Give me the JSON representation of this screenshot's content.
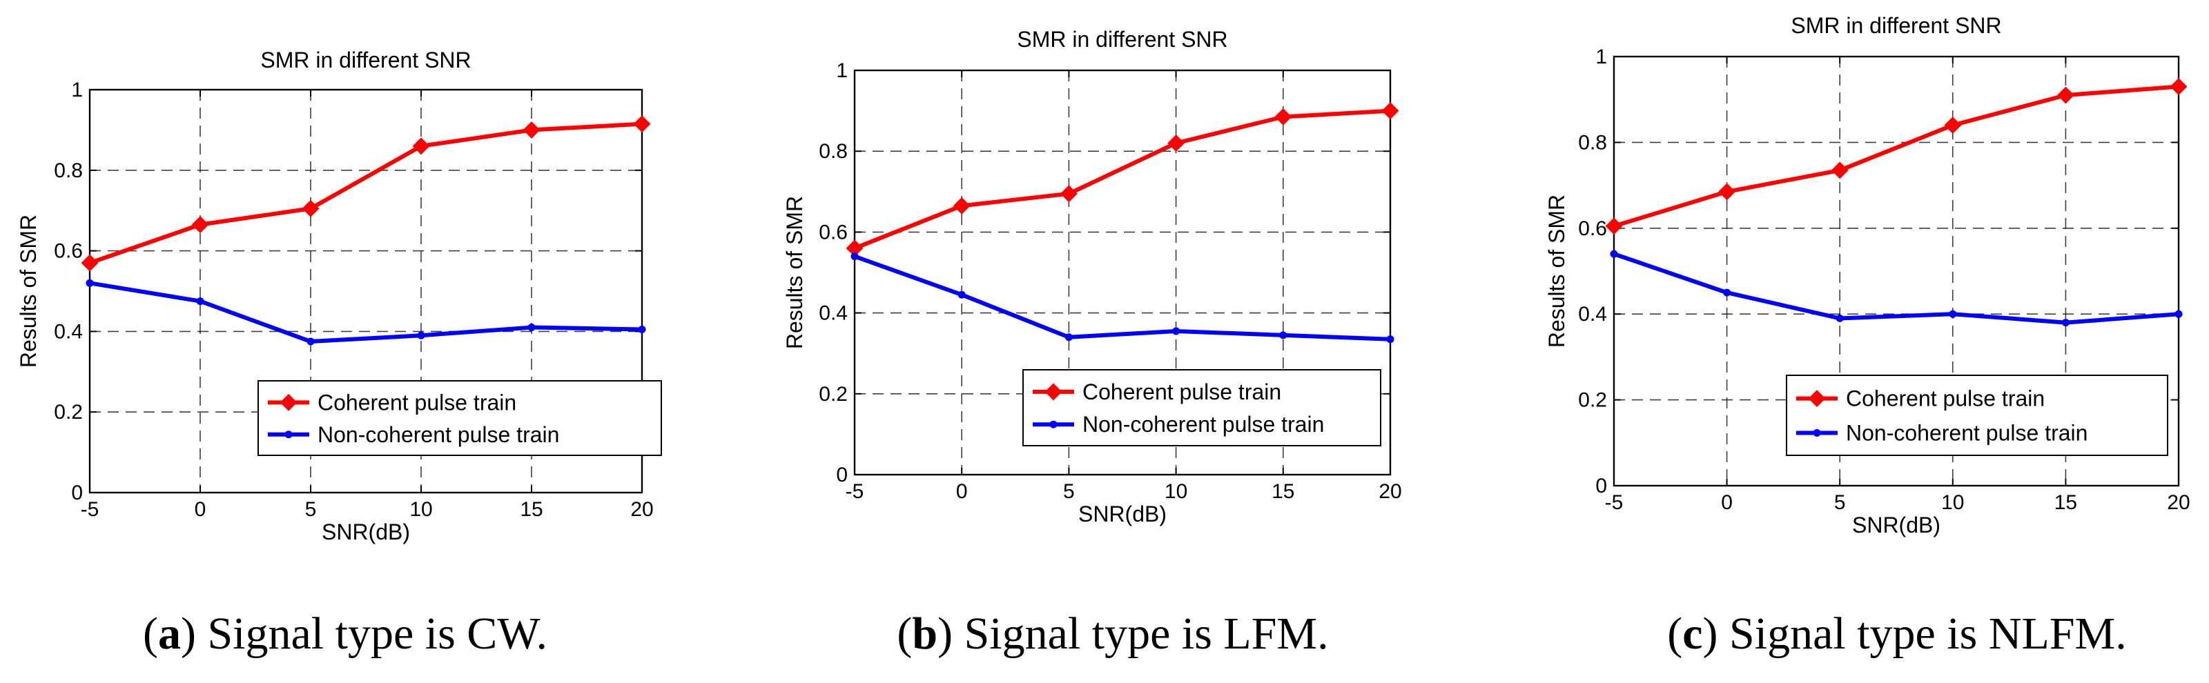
{
  "colors": {
    "coherent": "#ff0000",
    "noncoherent": "#0000ff",
    "grid": "#000000",
    "axis": "#000000"
  },
  "chart_data": [
    {
      "type": "line",
      "title": "SMR in different SNR",
      "xlabel": "SNR(dB)",
      "ylabel": "Results of SMR",
      "x": [
        -5,
        0,
        5,
        10,
        15,
        20
      ],
      "xlim": [
        -5,
        20
      ],
      "ylim": [
        0,
        1
      ],
      "xticks": [
        "-5",
        "0",
        "5",
        "10",
        "15",
        "20"
      ],
      "yticks": [
        "0",
        "0.2",
        "0.4",
        "0.6",
        "0.8",
        "1"
      ],
      "grid": true,
      "legend_position": "lower-right",
      "series": [
        {
          "name": "Coherent pulse train",
          "marker": "diamond",
          "values": [
            0.57,
            0.665,
            0.705,
            0.86,
            0.9,
            0.915
          ]
        },
        {
          "name": "Non-coherent pulse train",
          "marker": "point",
          "values": [
            0.52,
            0.475,
            0.375,
            0.39,
            0.41,
            0.405
          ]
        }
      ],
      "caption": {
        "label": "a",
        "prefix": "(",
        "suffix": ")",
        "text": " Signal type is CW."
      }
    },
    {
      "type": "line",
      "title": "SMR in different SNR",
      "xlabel": "SNR(dB)",
      "ylabel": "Results of SMR",
      "x": [
        -5,
        0,
        5,
        10,
        15,
        20
      ],
      "xlim": [
        -5,
        20
      ],
      "ylim": [
        0,
        1
      ],
      "xticks": [
        "-5",
        "0",
        "5",
        "10",
        "15",
        "20"
      ],
      "yticks": [
        "0",
        "0.2",
        "0.4",
        "0.6",
        "0.8",
        "1"
      ],
      "grid": true,
      "legend_position": "lower-right",
      "series": [
        {
          "name": "Coherent pulse train",
          "marker": "diamond",
          "values": [
            0.56,
            0.665,
            0.695,
            0.82,
            0.885,
            0.9
          ]
        },
        {
          "name": "Non-coherent pulse train",
          "marker": "point",
          "values": [
            0.54,
            0.445,
            0.34,
            0.355,
            0.345,
            0.335
          ]
        }
      ],
      "caption": {
        "label": "b",
        "prefix": "(",
        "suffix": ")",
        "text": " Signal type is LFM."
      }
    },
    {
      "type": "line",
      "title": "SMR in different SNR",
      "xlabel": "SNR(dB)",
      "ylabel": "Results of SMR",
      "x": [
        -5,
        0,
        5,
        10,
        15,
        20
      ],
      "xlim": [
        -5,
        20
      ],
      "ylim": [
        0,
        1
      ],
      "xticks": [
        "-5",
        "0",
        "5",
        "10",
        "15",
        "20"
      ],
      "yticks": [
        "0",
        "0.2",
        "0.4",
        "0.6",
        "0.8",
        "1"
      ],
      "grid": true,
      "legend_position": "lower-right",
      "series": [
        {
          "name": "Coherent pulse train",
          "marker": "diamond",
          "values": [
            0.605,
            0.685,
            0.735,
            0.84,
            0.91,
            0.93
          ]
        },
        {
          "name": "Non-coherent pulse train",
          "marker": "point",
          "values": [
            0.54,
            0.45,
            0.39,
            0.4,
            0.38,
            0.4
          ]
        }
      ],
      "caption": {
        "label": "c",
        "prefix": "(",
        "suffix": ")",
        "text": " Signal type is NLFM."
      }
    }
  ]
}
